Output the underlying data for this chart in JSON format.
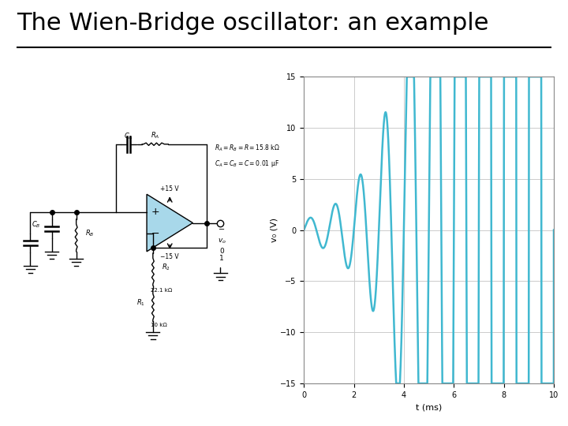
{
  "title": "The Wien-Bridge oscillator: an example",
  "title_fontsize": 22,
  "bg_color": "#ffffff",
  "plot_color": "#40b8d0",
  "plot_linewidth": 1.8,
  "xlabel": "t (ms)",
  "ylabel": "v₀ (V)",
  "xlim": [
    0,
    10
  ],
  "ylim": [
    -15,
    15
  ],
  "xticks": [
    0,
    2,
    4,
    6,
    8,
    10
  ],
  "yticks": [
    -15,
    -10,
    -5,
    0,
    5,
    10,
    15
  ],
  "grid_color": "#cccccc",
  "freq_khz": 1.0,
  "growth_rate": 0.75,
  "saturation": 15.0,
  "annotation_R": "$R_A = R_B = R = 15.8$ kΩ",
  "annotation_C": "$C_A = C_B = C = 0.01$ μF",
  "opamp_color": "#a8d8ea"
}
